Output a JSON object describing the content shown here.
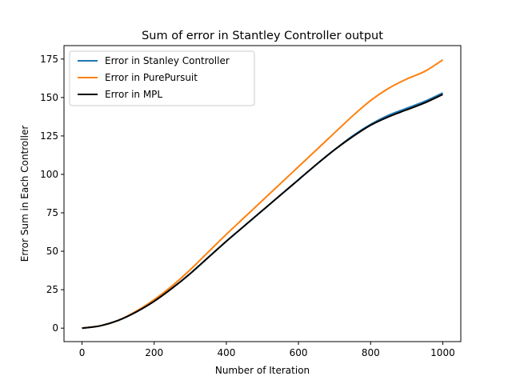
{
  "chart_data": {
    "type": "line",
    "title": "Sum of error in Stantley Controller output",
    "xlabel": "Number of Iteration",
    "ylabel": "Error Sum in Each Controller",
    "xlim": [
      -50,
      1050
    ],
    "ylim": [
      -8.75,
      183.75
    ],
    "xticks": [
      0,
      200,
      400,
      600,
      800,
      1000
    ],
    "yticks": [
      0,
      25,
      50,
      75,
      100,
      125,
      150,
      175
    ],
    "grid": false,
    "legend_position": "top-left",
    "x": [
      0,
      50,
      100,
      150,
      200,
      250,
      300,
      350,
      400,
      450,
      500,
      550,
      600,
      650,
      700,
      750,
      800,
      850,
      900,
      950,
      1000
    ],
    "series": [
      {
        "name": "Error in Stanley Controller",
        "color": "#1f77b4",
        "values": [
          0,
          1.5,
          5,
          10.5,
          17.5,
          26,
          35.5,
          46,
          56.5,
          66.5,
          76.5,
          86.5,
          96.5,
          106.5,
          116,
          125,
          132.5,
          138.5,
          143,
          147.5,
          153
        ]
      },
      {
        "name": "Error in PurePursuit",
        "color": "#ff7f0e",
        "values": [
          0,
          1.5,
          5,
          11,
          18.5,
          27.5,
          38,
          49.5,
          61,
          72,
          83,
          94,
          105,
          116,
          127,
          138,
          148,
          156,
          162,
          167,
          174.5
        ]
      },
      {
        "name": "Error in MPL",
        "color": "#000000",
        "values": [
          0,
          1.5,
          5,
          10.5,
          17.5,
          26,
          35.5,
          46,
          56.5,
          66.5,
          76.5,
          86.5,
          96.5,
          106.5,
          116,
          124.5,
          132,
          137.5,
          142,
          146.5,
          152
        ]
      }
    ]
  }
}
